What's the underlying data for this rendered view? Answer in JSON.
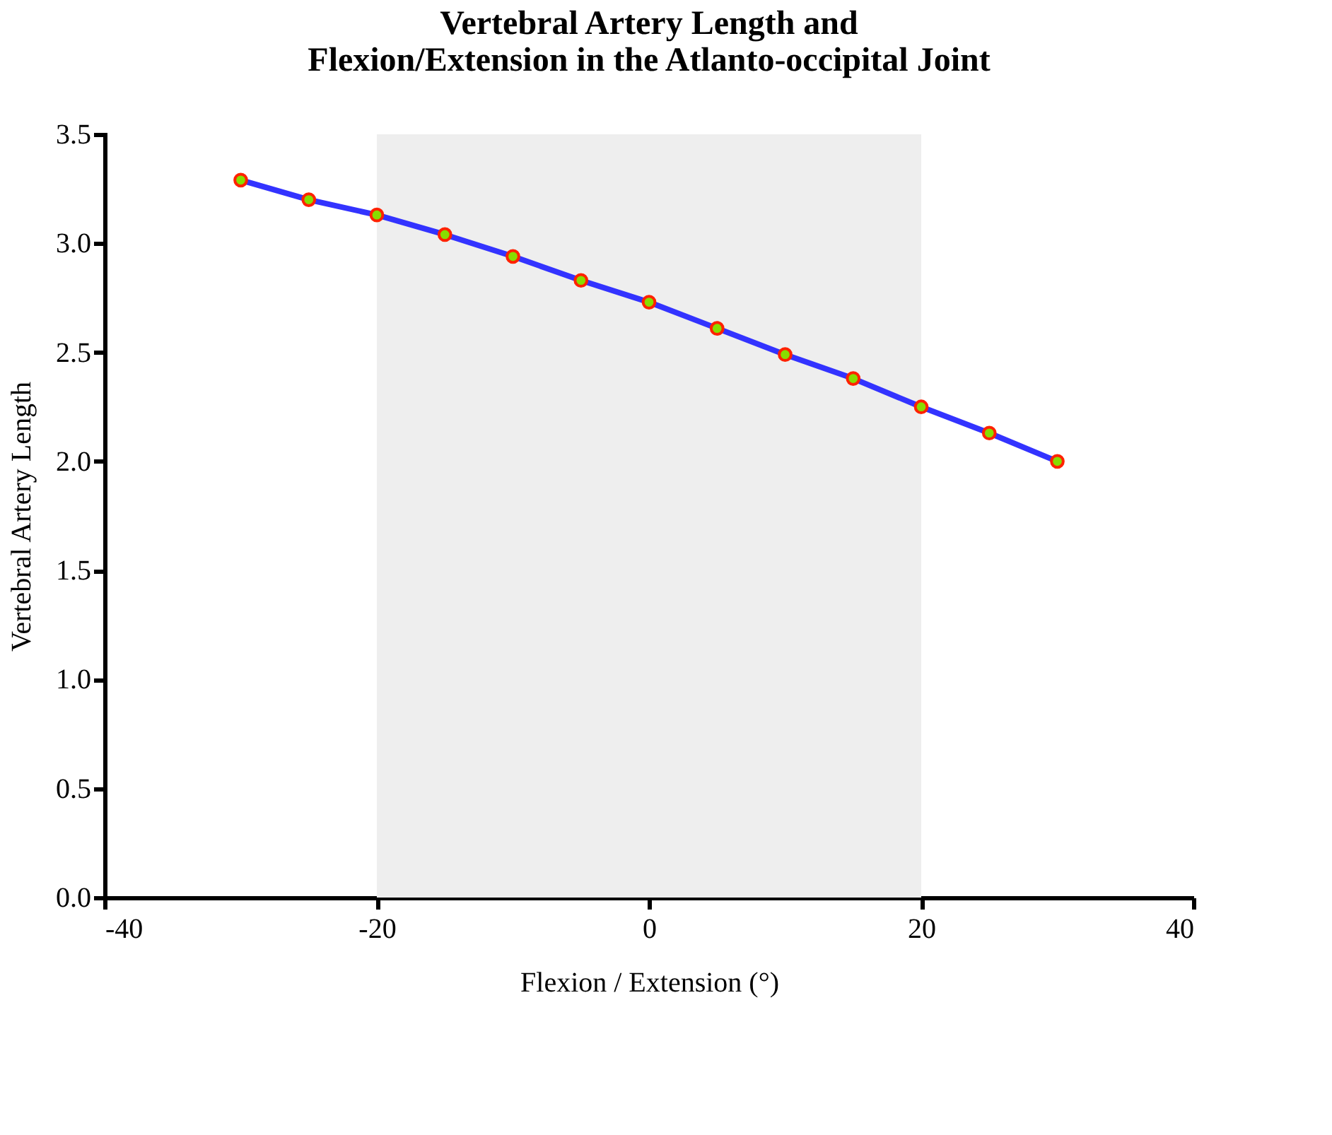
{
  "chart_data": {
    "type": "line",
    "title": [
      "Vertebral Artery Length and",
      "Flexion/Extension in the Atlanto-occipital Joint"
    ],
    "xlabel": "Flexion / Extension (°)",
    "ylabel": "Vertebral Artery Length",
    "x": [
      -30,
      -25,
      -20,
      -15,
      -10,
      -5,
      0,
      5,
      10,
      15,
      20,
      25,
      30
    ],
    "series": [
      {
        "color": "#3333ff",
        "values": [
          3.29,
          3.2,
          3.13,
          3.04,
          2.94,
          2.83,
          2.73,
          2.61,
          2.49,
          2.38,
          2.25,
          2.13,
          2.0
        ]
      }
    ],
    "xlim": [
      -40,
      40
    ],
    "xticks": [
      -40,
      -20,
      0,
      20,
      40
    ],
    "ylim": [
      0,
      3.5
    ],
    "yticks": [
      {
        "value": 0,
        "label": "0.0"
      },
      0.5,
      {
        "value": 1,
        "label": "1.0"
      },
      1.5,
      {
        "value": 2,
        "label": "2.0"
      },
      2.5,
      {
        "value": 3,
        "label": "3.0"
      },
      3.5
    ],
    "bands": [
      {
        "axis": "x",
        "from": -20,
        "to": 20,
        "color": "#eeeeee"
      }
    ],
    "marker": "circle",
    "grid": false
  }
}
